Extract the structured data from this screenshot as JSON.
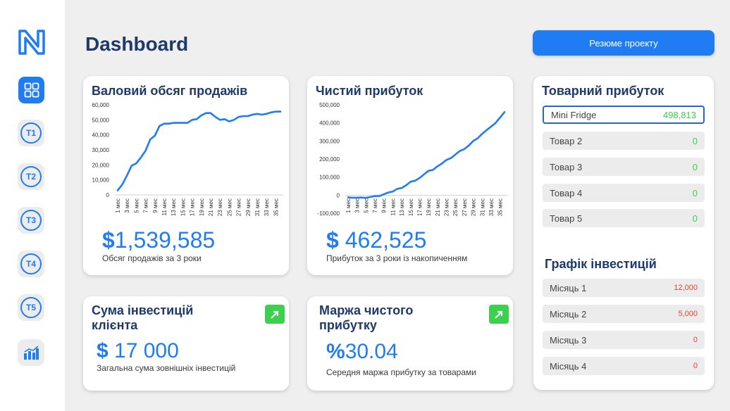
{
  "sidebar": {
    "logo": "N-logo",
    "items": [
      {
        "icon": "grid-icon"
      },
      {
        "label": "T1"
      },
      {
        "label": "T2"
      },
      {
        "label": "T3"
      },
      {
        "label": "T4"
      },
      {
        "label": "T5"
      },
      {
        "icon": "bar-chart-icon"
      }
    ]
  },
  "header": {
    "title": "Dashboard",
    "summary_button": "Резюме проекту"
  },
  "sales": {
    "title": "Валовий обсяг продажів",
    "currency": "$",
    "value": "1,539,585",
    "caption": "Обсяг продажів за 3 роки"
  },
  "profit": {
    "title": "Чистий прибуток",
    "currency": "$",
    "value": "462,525",
    "caption": "Прибуток за 3 роки із накопиченням"
  },
  "investment": {
    "title_line1": "Сума інвестицій",
    "title_line2": "клієнта",
    "currency": "$",
    "value": "17 000",
    "caption": "Загальна сума зовнішніх інвестицій"
  },
  "margin": {
    "title_line1": "Маржа чистого",
    "title_line2": "прибутку",
    "currency": "%",
    "value": "30.04",
    "caption": "Середня маржа прибутку за товарами"
  },
  "product_profit": {
    "title": "Товарний прибуток",
    "items": [
      {
        "label": "Mini Fridge",
        "value": "498,813"
      },
      {
        "label": "Товар 2",
        "value": "0"
      },
      {
        "label": "Товар 3",
        "value": "0"
      },
      {
        "label": "Товар 4",
        "value": "0"
      },
      {
        "label": "Товар 5",
        "value": "0"
      }
    ]
  },
  "investment_schedule": {
    "title": "Графік інвестицій",
    "items": [
      {
        "label": "Місяць 1",
        "value": "12,000"
      },
      {
        "label": "Місяць 2",
        "value": "5,000"
      },
      {
        "label": "Місяць 3",
        "value": "0"
      },
      {
        "label": "Місяць 4",
        "value": "0"
      }
    ]
  },
  "colors": {
    "accent": "#1f7cf2",
    "navy": "#1d3a6b",
    "green": "#3bd04d",
    "red": "#e0442f"
  },
  "chart_data": [
    {
      "type": "line",
      "x": [
        "1 мес",
        "2 мес",
        "3 мес",
        "4 мес",
        "5 мес",
        "6 мес",
        "7 мес",
        "8 мес",
        "9 мес",
        "10 мес",
        "11 мес",
        "12 мес",
        "13 мес",
        "14 мес",
        "15 мес",
        "16 мес",
        "17 мес",
        "18 мес",
        "19 мес",
        "20 мес",
        "21 мес",
        "22 мес",
        "23 мес",
        "24 мес",
        "25 мес",
        "26 мес",
        "27 мес",
        "28 мес",
        "29 мес",
        "30 мес",
        "31 мес",
        "32 мес",
        "33 мес",
        "34 мес",
        "35 мес",
        "36 мес"
      ],
      "x_tick_labels": [
        "1 мес",
        "3 мес",
        "5 мес",
        "7 мес",
        "9 мес",
        "11 мес",
        "13 мес",
        "15 мес",
        "17 мес",
        "19 мес",
        "21 мес",
        "23 мес",
        "25 мес",
        "27 мес",
        "29 мес",
        "31 мес",
        "33 мес",
        "35 мес"
      ],
      "values": [
        3000,
        7000,
        13000,
        19500,
        21000,
        25000,
        29500,
        37000,
        39500,
        46000,
        47500,
        47500,
        48000,
        48000,
        48000,
        48000,
        50000,
        50500,
        53000,
        54500,
        54500,
        52000,
        50000,
        50500,
        49000,
        50000,
        52000,
        52500,
        52500,
        53500,
        54000,
        53500,
        54000,
        55000,
        55500,
        55500
      ],
      "y_tick_labels": [
        "0",
        "10,000",
        "20,000",
        "30,000",
        "40,000",
        "50,000",
        "60,000"
      ],
      "ylim": [
        0,
        60000
      ],
      "grid": false
    },
    {
      "type": "line",
      "x": [
        "1 мес",
        "2 мес",
        "3 мес",
        "4 мес",
        "5 мес",
        "6 мес",
        "7 мес",
        "8 мес",
        "9 мес",
        "10 мес",
        "11 мес",
        "12 мес",
        "13 мес",
        "14 мес",
        "15 мес",
        "16 мес",
        "17 мес",
        "18 мес",
        "19 мес",
        "20 мес",
        "21 мес",
        "22 мес",
        "23 мес",
        "24 мес",
        "25 мес",
        "26 мес",
        "27 мес",
        "28 мес",
        "29 мес",
        "30 мес",
        "31 мес",
        "32 мес",
        "33 мес",
        "34 мес",
        "35 мес",
        "36 мес"
      ],
      "x_tick_labels": [
        "1 мес",
        "3 мес",
        "5 мес",
        "7 мес",
        "9 мес",
        "11 мес",
        "13 мес",
        "15 мес",
        "17 мес",
        "19 мес",
        "21 мес",
        "23 мес",
        "25 мес",
        "27 мес",
        "29 мес",
        "31 мес",
        "33 мес",
        "35 мес"
      ],
      "values": [
        -12000,
        -14000,
        -14000,
        -13000,
        -15000,
        -10000,
        -5000,
        -5000,
        5000,
        15000,
        20000,
        35000,
        40000,
        55000,
        75000,
        80000,
        95000,
        115000,
        135000,
        140000,
        160000,
        175000,
        195000,
        205000,
        225000,
        245000,
        255000,
        275000,
        300000,
        315000,
        340000,
        360000,
        380000,
        400000,
        430000,
        460000
      ],
      "y_tick_labels": [
        "-100,000",
        "0",
        "100,000",
        "200,000",
        "300,000",
        "400,000",
        "500,000"
      ],
      "ylim": [
        -100000,
        500000
      ],
      "grid": false
    }
  ]
}
